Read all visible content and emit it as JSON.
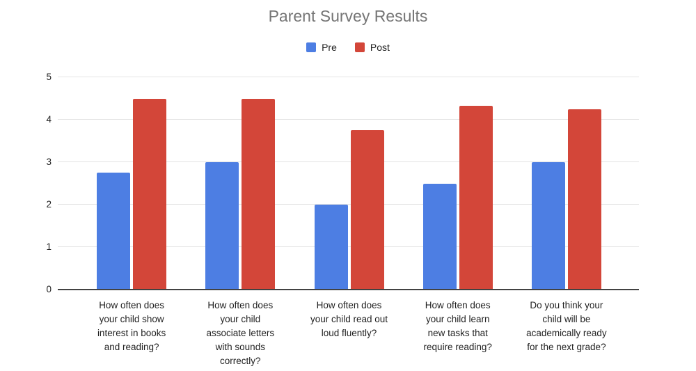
{
  "chart_data": {
    "type": "bar",
    "title": "Parent Survey Results",
    "categories": [
      "How often does\nyour child show\ninterest in books\nand reading?",
      "How often does\nyour child\nassociate letters\nwith sounds\ncorrectly?",
      "How often does\nyour child read out\nloud fluently?",
      "How often does\nyour child learn\nnew tasks that\nrequire reading?",
      "Do you think your\nchild will be\nacademically ready\nfor the next grade?"
    ],
    "series": [
      {
        "name": "Pre",
        "color": "#4d7ee3",
        "values": [
          2.75,
          3,
          2,
          2.5,
          3
        ]
      },
      {
        "name": "Post",
        "color": "#d34639",
        "values": [
          4.5,
          4.5,
          3.75,
          4.33,
          4.25
        ]
      }
    ],
    "ylim": [
      0,
      5
    ],
    "yticks": [
      0,
      1,
      2,
      3,
      4,
      5
    ],
    "grid": true,
    "legend_position": "top",
    "colors": {
      "title": "#757575",
      "axis_labels": "#1f1f1f",
      "legend_text": "#212121",
      "gridline": "#e3e3e3",
      "axis_line": "#424242",
      "background": "#ffffff"
    }
  }
}
